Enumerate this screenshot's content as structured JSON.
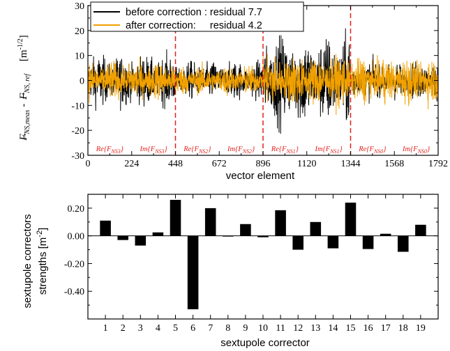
{
  "colors": {
    "before": "#000000",
    "after": "#f0a100",
    "segment_line": "#e0211c",
    "bar": "#000000"
  },
  "chart_data": [
    {
      "type": "line",
      "xlabel": "vector element",
      "ylabel_parts": {
        "arrow": "→",
        "f1": "F",
        "f1_sub": "NS,meas",
        "minus": "-",
        "f2": "F",
        "f2_sub": "NS, ref",
        "unit": "[m",
        "unit_sup": "-1/2",
        "unit_close": "]"
      },
      "xlim": [
        0,
        1792
      ],
      "ylim": [
        -30,
        30
      ],
      "xticks": [
        0,
        224,
        448,
        672,
        896,
        1120,
        1344,
        1568,
        1792
      ],
      "yticks": [
        -30,
        -20,
        -10,
        0,
        10,
        20,
        30
      ],
      "grid": false,
      "legend_position": "top-left",
      "segment_boundaries": [
        448,
        896,
        1344
      ],
      "segment_labels": [
        {
          "x": 112,
          "text": "Re{F",
          "sub": "NS3",
          "close": "}"
        },
        {
          "x": 336,
          "text": "Im{F",
          "sub": "NS3",
          "close": "}"
        },
        {
          "x": 560,
          "text": "Re{F",
          "sub": "NS2",
          "close": "}"
        },
        {
          "x": 784,
          "text": "Im{F",
          "sub": "NS2",
          "close": "}"
        },
        {
          "x": 1008,
          "text": "Re{F",
          "sub": "NS1",
          "close": "}"
        },
        {
          "x": 1232,
          "text": "Im{F",
          "sub": "NS1",
          "close": "}"
        },
        {
          "x": 1456,
          "text": "Re{F",
          "sub": "NS0",
          "close": "}"
        },
        {
          "x": 1680,
          "text": "Im{F",
          "sub": "NS0",
          "close": "}"
        }
      ],
      "series": [
        {
          "name": "before correction : residual 7.7",
          "region_amplitudes": [
            {
              "x_start": 0,
              "x_end": 448,
              "amplitude": 12
            },
            {
              "x_start": 448,
              "x_end": 896,
              "amplitude": 9
            },
            {
              "x_start": 896,
              "x_end": 1344,
              "amplitude": 21
            },
            {
              "x_start": 1344,
              "x_end": 1792,
              "amplitude": 9
            }
          ]
        },
        {
          "name": "after correction:     residual 4.2",
          "region_amplitudes": [
            {
              "x_start": 0,
              "x_end": 448,
              "amplitude": 9
            },
            {
              "x_start": 448,
              "x_end": 896,
              "amplitude": 7
            },
            {
              "x_start": 896,
              "x_end": 1344,
              "amplitude": 12
            },
            {
              "x_start": 1344,
              "x_end": 1792,
              "amplitude": 11
            }
          ]
        }
      ]
    },
    {
      "type": "bar",
      "xlabel": "sextupole corrector",
      "ylabel_line1": "sextupole correctors",
      "ylabel_line2_text": "strengths [m",
      "ylabel_line2_sup": "-2",
      "ylabel_line2_close": "]",
      "categories": [
        "1",
        "2",
        "3",
        "4",
        "5",
        "6",
        "7",
        "8",
        "9",
        "10",
        "11",
        "12",
        "13",
        "14",
        "15",
        "16",
        "17",
        "18",
        "19"
      ],
      "values": [
        0.11,
        -0.03,
        -0.07,
        0.025,
        0.26,
        -0.53,
        0.2,
        -0.005,
        0.085,
        -0.01,
        0.185,
        -0.1,
        0.1,
        -0.09,
        0.24,
        -0.095,
        0.015,
        -0.115,
        0.08
      ],
      "ylim": [
        -0.6,
        0.3
      ],
      "yticks": [
        -0.4,
        -0.2,
        0.0,
        0.2
      ],
      "ytick_labels": [
        "-0.40",
        "-0.20",
        "0.00",
        "0.20"
      ],
      "grid": false
    }
  ]
}
